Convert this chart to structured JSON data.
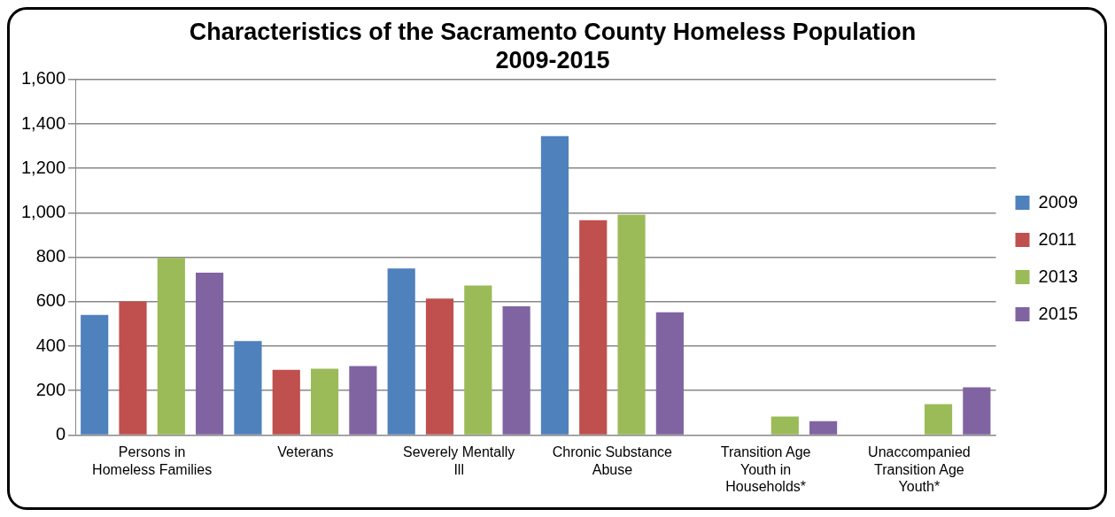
{
  "chart_data": {
    "type": "bar",
    "title": "Characteristics of the Sacramento County Homeless Population 2009-2015",
    "categories": [
      "Persons in Homeless Families",
      "Veterans",
      "Severely Mentally Ill",
      "Chronic Substance Abuse",
      "Transition Age Youth in Households*",
      "Unaccompanied Transition Age Youth*"
    ],
    "series": [
      {
        "name": "2009",
        "color": "#4f81bd",
        "values": [
          540,
          423,
          750,
          1345,
          null,
          null
        ]
      },
      {
        "name": "2011",
        "color": "#c0504d",
        "values": [
          601,
          293,
          614,
          967,
          null,
          null
        ]
      },
      {
        "name": "2013",
        "color": "#9bbb59",
        "values": [
          797,
          298,
          673,
          992,
          83,
          139
        ]
      },
      {
        "name": "2015",
        "color": "#8064a2",
        "values": [
          731,
          310,
          579,
          552,
          62,
          215
        ]
      }
    ],
    "ylim": [
      0,
      1600
    ],
    "yticks": [
      0,
      200,
      400,
      600,
      800,
      {
        "value": 1000,
        "label": "1,000"
      },
      {
        "value": 1200,
        "label": "1,200"
      },
      {
        "value": 1400,
        "label": "1,400"
      },
      {
        "value": 1600,
        "label": "1,600"
      }
    ],
    "grid": "y",
    "legend": "right"
  }
}
